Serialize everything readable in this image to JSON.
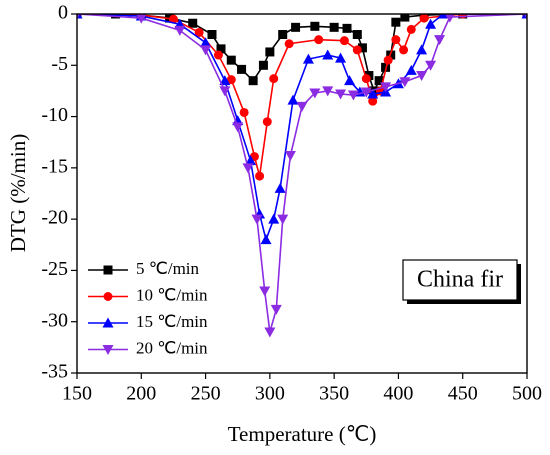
{
  "chart_data": {
    "type": "line",
    "xlabel": "Temperature (℃)",
    "ylabel": "DTG (%/min)",
    "annotation": "China fir",
    "xlim": [
      150,
      500
    ],
    "xticks": [
      150,
      200,
      250,
      300,
      350,
      400,
      450,
      500
    ],
    "ylim": [
      -35,
      0
    ],
    "yticks": [
      -35,
      -30,
      -25,
      -20,
      -15,
      -10,
      -5,
      0
    ],
    "legend": "lower left",
    "series": [
      {
        "name": "5 ℃/min",
        "color": "#000000",
        "marker": "square",
        "x": [
          150,
          180,
          200,
          222,
          240,
          255,
          262,
          270,
          278,
          287,
          295,
          300,
          310,
          320,
          335,
          350,
          360,
          368,
          372,
          377,
          381,
          385,
          390,
          394,
          398,
          405,
          420,
          450,
          500
        ],
        "values": [
          0,
          0,
          -0.1,
          -0.4,
          -0.9,
          -2,
          -3.4,
          -4.5,
          -5.4,
          -6.5,
          -5,
          -3.7,
          -2,
          -1.3,
          -1.2,
          -1.3,
          -1.4,
          -2,
          -3.3,
          -6,
          -7.5,
          -6.5,
          -5.2,
          -4,
          -0.8,
          -0.3,
          -0.1,
          0,
          0
        ]
      },
      {
        "name": "10 ℃/min",
        "color": "#ff0000",
        "marker": "circle",
        "x": [
          150,
          200,
          225,
          245,
          260,
          270,
          280,
          288,
          292,
          298,
          303,
          315,
          338,
          358,
          368,
          375,
          380,
          386,
          392,
          398,
          404,
          410,
          420,
          450,
          500
        ],
        "values": [
          0,
          -0.1,
          -0.5,
          -1.8,
          -4,
          -6.4,
          -9.6,
          -13.9,
          -15.8,
          -10.5,
          -6.3,
          -2.9,
          -2.5,
          -2.6,
          -3.5,
          -6.3,
          -8.5,
          -7.5,
          -4.5,
          -2.5,
          -3.5,
          -1.5,
          -0.4,
          0,
          0
        ]
      },
      {
        "name": "15 ℃/min",
        "color": "#0000ff",
        "marker": "triangle-up",
        "x": [
          150,
          200,
          230,
          250,
          265,
          275,
          285,
          292,
          297,
          303,
          308,
          318,
          330,
          345,
          355,
          362,
          370,
          380,
          390,
          400,
          410,
          418,
          425,
          435,
          500
        ],
        "values": [
          0,
          -0.2,
          -1,
          -2.8,
          -6.5,
          -10.4,
          -14.3,
          -19.5,
          -22,
          -20,
          -17,
          -8.4,
          -4.4,
          -4,
          -4.3,
          -6.5,
          -7.6,
          -7.8,
          -7.6,
          -6.8,
          -5.5,
          -3.5,
          -1,
          0,
          0
        ]
      },
      {
        "name": "20 ℃/min",
        "color": "#8b2be2",
        "marker": "triangle-down",
        "x": [
          150,
          200,
          230,
          250,
          265,
          275,
          283,
          290,
          296,
          300,
          305,
          310,
          316,
          325,
          335,
          345,
          355,
          365,
          375,
          390,
          405,
          418,
          425,
          432,
          440,
          500
        ],
        "values": [
          0,
          -0.4,
          -1.6,
          -3.5,
          -7.5,
          -11,
          -15,
          -20,
          -27,
          -31,
          -28.8,
          -20,
          -13.8,
          -9,
          -7.7,
          -7.5,
          -7.8,
          -7.9,
          -7.6,
          -7.1,
          -6.6,
          -6,
          -5,
          -2.5,
          -0.3,
          0
        ]
      }
    ]
  }
}
